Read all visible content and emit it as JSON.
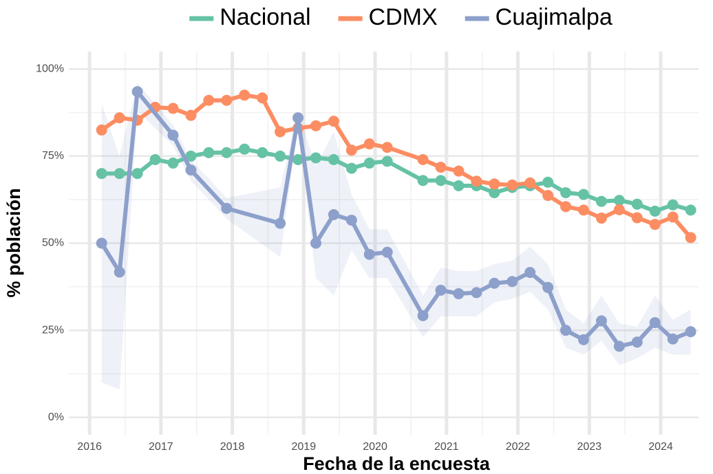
{
  "chart_data": {
    "type": "line",
    "x_label": "Fecha de la encuesta",
    "y_label": "% población",
    "xlim": [
      2015.71,
      2024.53
    ],
    "ylim": [
      -5,
      105
    ],
    "xticks": [
      2016,
      2017,
      2018,
      2019,
      2020,
      2021,
      2022,
      2023,
      2024
    ],
    "yticks": [
      {
        "value": 0,
        "label": "0%"
      },
      {
        "value": 25,
        "label": "25%"
      },
      {
        "value": 50,
        "label": "50%"
      },
      {
        "value": 75,
        "label": "75%"
      },
      {
        "value": 100,
        "label": "100%"
      }
    ],
    "grid": true,
    "legend": "top",
    "series": [
      {
        "name": "Nacional",
        "color": "#66c2a5",
        "x": [
          2016.17,
          2016.42,
          2016.67,
          2016.92,
          2017.17,
          2017.42,
          2017.67,
          2017.92,
          2018.17,
          2018.42,
          2018.67,
          2018.92,
          2019.17,
          2019.42,
          2019.67,
          2019.92,
          2020.17,
          2020.67,
          2020.92,
          2021.17,
          2021.42,
          2021.67,
          2021.92,
          2022.17,
          2022.42,
          2022.67,
          2022.92,
          2023.17,
          2023.42,
          2023.67,
          2023.92,
          2024.17,
          2024.42
        ],
        "values": [
          70,
          70,
          70,
          74,
          73,
          75,
          76,
          76,
          77,
          76,
          75,
          74,
          74.5,
          74,
          71.5,
          73,
          73.5,
          68,
          68,
          66.5,
          66.5,
          64.5,
          66,
          66.5,
          67.5,
          64.5,
          64,
          62,
          62.3,
          61.2,
          59.2,
          61,
          59.5
        ]
      },
      {
        "name": "CDMX",
        "color": "#fc8d62",
        "x": [
          2016.17,
          2016.42,
          2016.67,
          2016.92,
          2017.17,
          2017.42,
          2017.67,
          2017.92,
          2018.17,
          2018.42,
          2018.67,
          2018.92,
          2019.17,
          2019.42,
          2019.67,
          2019.92,
          2020.17,
          2020.67,
          2020.92,
          2021.17,
          2021.42,
          2021.67,
          2021.92,
          2022.17,
          2022.42,
          2022.67,
          2022.92,
          2023.17,
          2023.42,
          2023.67,
          2023.92,
          2024.17,
          2024.42
        ],
        "values": [
          82.5,
          86,
          85.3,
          89,
          88.7,
          86.7,
          91,
          91,
          92.5,
          91.7,
          82,
          83,
          83.7,
          85,
          76.7,
          78.5,
          77.5,
          74,
          71.8,
          70.7,
          67.8,
          67,
          66.7,
          67.3,
          63.7,
          60.5,
          59.5,
          57.2,
          59.6,
          57.3,
          55.4,
          57.5,
          51.6
        ]
      },
      {
        "name": "Cuajimalpa",
        "color": "#8da0cb",
        "x": [
          2016.17,
          2016.42,
          2016.67,
          2017.17,
          2017.42,
          2017.92,
          2018.67,
          2018.92,
          2019.17,
          2019.42,
          2019.67,
          2019.92,
          2020.17,
          2020.67,
          2020.92,
          2021.17,
          2021.42,
          2021.67,
          2021.92,
          2022.17,
          2022.42,
          2022.67,
          2022.92,
          2023.17,
          2023.42,
          2023.67,
          2023.92,
          2024.17,
          2024.42
        ],
        "values": [
          50,
          41.7,
          93.5,
          81,
          71,
          60,
          55.7,
          86,
          50,
          58.2,
          56.6,
          46.8,
          47.4,
          29.2,
          36.5,
          35.5,
          35.8,
          38.5,
          39,
          41.6,
          37.3,
          25,
          22.3,
          27.7,
          20.4,
          21.6,
          27.2,
          22.5,
          24.6
        ],
        "lower": [
          10,
          8,
          88,
          78,
          68,
          57,
          46,
          84,
          40,
          35,
          48,
          40,
          40,
          23,
          29,
          29,
          29,
          33,
          34,
          36,
          31,
          20,
          18,
          22,
          15,
          17,
          20,
          18,
          18
        ],
        "upper": [
          90,
          75,
          96,
          84,
          74,
          63,
          66,
          88,
          72,
          82,
          64,
          54,
          54,
          35,
          43,
          42,
          42,
          44,
          45,
          49,
          44,
          31,
          27,
          35,
          27,
          26,
          35,
          28,
          31
        ]
      }
    ]
  }
}
